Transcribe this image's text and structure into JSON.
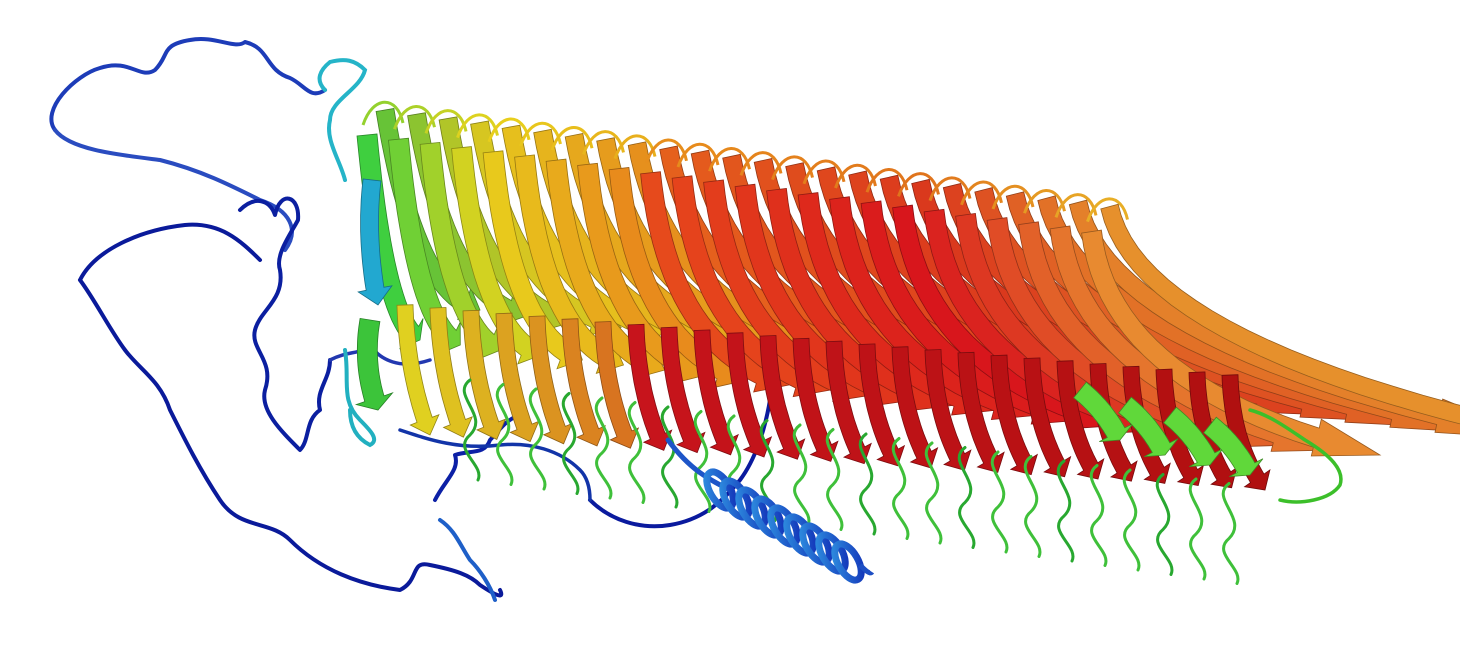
{
  "figure": {
    "kind": "protein-structure-cartoon",
    "background": "#ffffff",
    "color_scheme": "rainbow",
    "colors": {
      "low": "#0a1fa8",
      "mid_low": "#1e7fd6",
      "mid": "#3fcf3f",
      "mid_high": "#e8d21c",
      "high": "#d8141c",
      "helix": "#2a68d4"
    },
    "elements": {
      "beta_strands": "beta-strand-arrow",
      "coil": "coil-loop",
      "helix": "alpha-helix"
    }
  }
}
